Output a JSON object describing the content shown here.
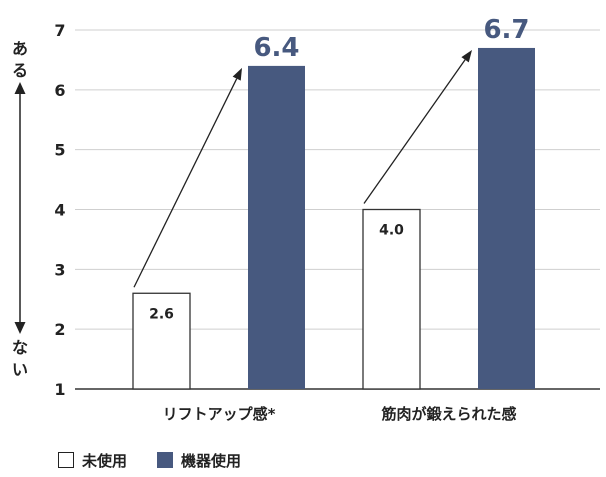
{
  "chart_data": {
    "type": "bar",
    "categories": [
      "リフトアップ感*",
      "筋肉が鍛えられた感"
    ],
    "series": [
      {
        "name": "未使用",
        "values": [
          2.6,
          4.0
        ],
        "labels": [
          "2.6",
          "4.0"
        ],
        "color": "#ffffff"
      },
      {
        "name": "機器使用",
        "values": [
          6.4,
          6.7
        ],
        "labels": [
          "6.4",
          "6.7"
        ],
        "color": "#47597f"
      }
    ],
    "ylim": [
      1,
      7
    ],
    "yticks": [
      "1",
      "2",
      "3",
      "4",
      "5",
      "6",
      "7"
    ],
    "y_top_label": "ある",
    "y_bottom_label": "ない",
    "grid": true,
    "legend": "bottom-left",
    "accent_color": "#47597f"
  }
}
